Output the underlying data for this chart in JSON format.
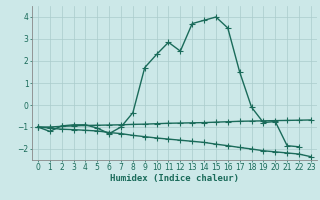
{
  "xlabel": "Humidex (Indice chaleur)",
  "x": [
    0,
    1,
    2,
    3,
    4,
    5,
    6,
    7,
    8,
    9,
    10,
    11,
    12,
    13,
    14,
    15,
    16,
    17,
    18,
    19,
    20,
    21,
    22,
    23
  ],
  "line1": [
    -1.0,
    -1.2,
    -0.95,
    -0.9,
    -0.9,
    -1.05,
    -1.3,
    -1.0,
    -0.35,
    1.7,
    2.3,
    2.85,
    2.45,
    3.7,
    3.85,
    4.0,
    3.5,
    1.5,
    -0.1,
    -0.8,
    -0.75,
    -1.85,
    -1.9,
    null
  ],
  "line2": [
    -1.0,
    -1.0,
    -0.97,
    -0.95,
    -0.93,
    -0.92,
    -0.91,
    -0.9,
    -0.88,
    -0.87,
    -0.85,
    -0.83,
    -0.82,
    -0.81,
    -0.8,
    -0.78,
    -0.76,
    -0.74,
    -0.73,
    -0.72,
    -0.71,
    -0.7,
    -0.69,
    -0.68
  ],
  "line3": [
    -1.0,
    -1.05,
    -1.1,
    -1.12,
    -1.15,
    -1.18,
    -1.25,
    -1.3,
    -1.38,
    -1.44,
    -1.5,
    -1.55,
    -1.6,
    -1.65,
    -1.7,
    -1.78,
    -1.85,
    -1.93,
    -2.0,
    -2.08,
    -2.13,
    -2.18,
    -2.23,
    -2.35
  ],
  "line_color": "#1a6b5a",
  "bg_color": "#cce8e8",
  "grid_color": "#aacccc",
  "ylim": [
    -2.5,
    4.5
  ],
  "xlim": [
    -0.5,
    23.5
  ],
  "yticks": [
    -2,
    -1,
    0,
    1,
    2,
    3,
    4
  ],
  "xticks": [
    0,
    1,
    2,
    3,
    4,
    5,
    6,
    7,
    8,
    9,
    10,
    11,
    12,
    13,
    14,
    15,
    16,
    17,
    18,
    19,
    20,
    21,
    22,
    23
  ],
  "marker": "+",
  "markersize": 4,
  "linewidth": 1.0,
  "tick_fontsize": 5.5,
  "xlabel_fontsize": 6.5
}
